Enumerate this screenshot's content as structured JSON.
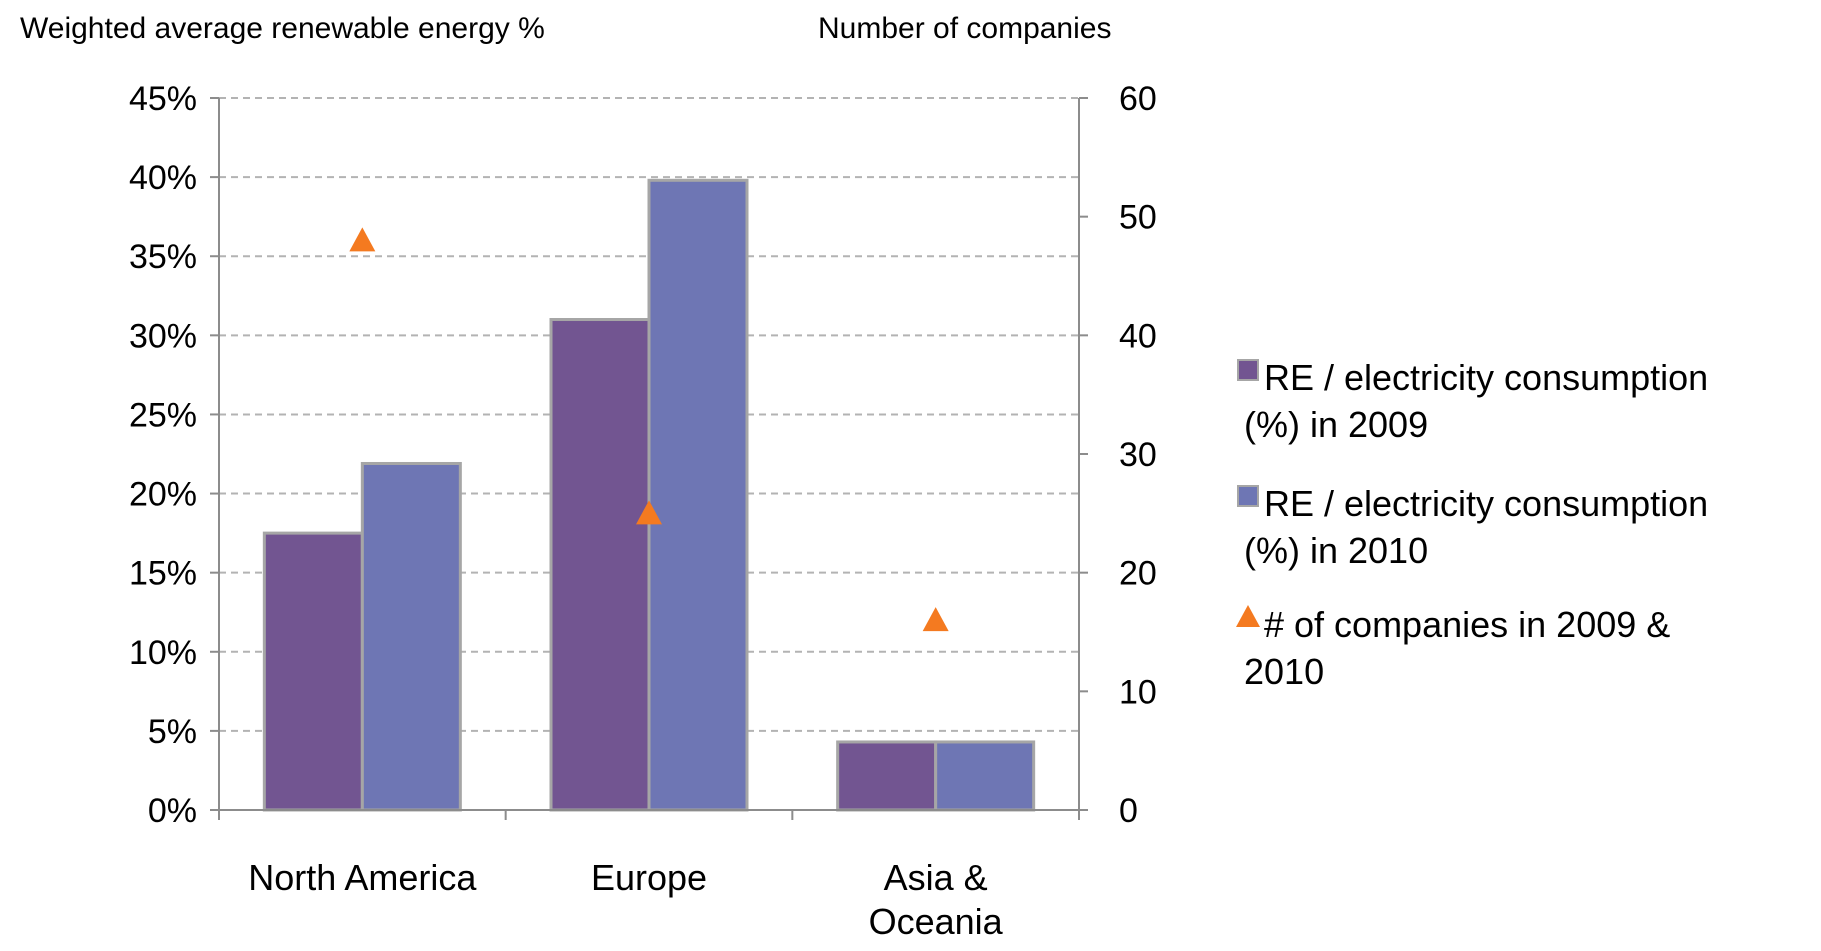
{
  "chart_data": {
    "type": "bar",
    "title": "",
    "categories": [
      "North America",
      "Europe",
      "Asia &\nOceania"
    ],
    "series": [
      {
        "name": "RE / electricity consumption (%) in 2009",
        "kind": "bar",
        "axis": "left",
        "color": "#725591",
        "values": [
          0.175,
          0.31,
          0.043
        ]
      },
      {
        "name": "RE / electricity consumption (%) in 2010",
        "kind": "bar",
        "axis": "left",
        "color": "#6e76b4",
        "values": [
          0.219,
          0.398,
          0.043
        ]
      },
      {
        "name": "# of companies in 2009 & 2010",
        "kind": "marker-triangle",
        "axis": "right",
        "color": "#f47a20",
        "values": [
          48,
          25,
          16
        ]
      }
    ],
    "left_axis": {
      "label": "Weighted average renewable energy %",
      "range": [
        0,
        0.45
      ],
      "ticks": [
        "0%",
        "5%",
        "10%",
        "15%",
        "20%",
        "25%",
        "30%",
        "35%",
        "40%",
        "45%"
      ]
    },
    "right_axis": {
      "label": "Number of companies",
      "range": [
        0,
        60
      ],
      "ticks": [
        "0",
        "10",
        "20",
        "30",
        "40",
        "50",
        "60"
      ]
    },
    "gridlines": "horizontal-dashed",
    "legend": {
      "position": "right",
      "entries": [
        [
          "RE / electricity consumption",
          "(%) in 2009"
        ],
        [
          "RE / electricity consumption",
          "(%) in 2010"
        ],
        [
          "# of companies in 2009 &",
          "2010"
        ]
      ]
    }
  }
}
